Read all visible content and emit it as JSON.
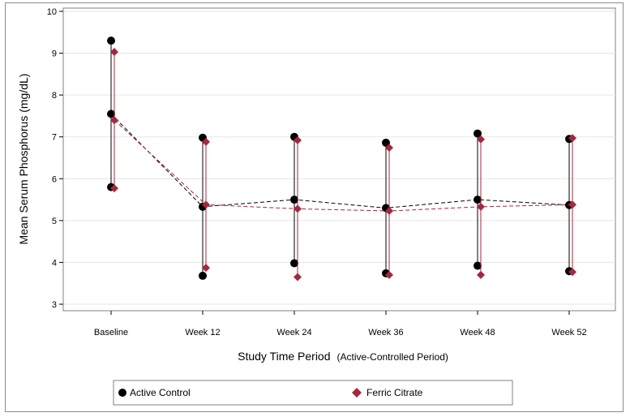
{
  "chart_data": {
    "type": "scatter",
    "categories": [
      "Baseline",
      "Week 12",
      "Week  24",
      "Week 36",
      "Week 48",
      "Week 52"
    ],
    "xlabel": "Study Time Period",
    "xlabel_suffix": "(Active-Controlled Period)",
    "ylabel": "Mean Serum Phosphorus (mg/dL)",
    "ylim": [
      3,
      10
    ],
    "yticks": [
      "3",
      "4",
      "5",
      "6",
      "7",
      "8",
      "9",
      "10"
    ],
    "grid": true,
    "legend_position": "bottom",
    "series": [
      {
        "name": "Active Control",
        "marker": "circle",
        "color": "#000000",
        "mean": [
          7.55,
          5.33,
          5.5,
          5.3,
          5.5,
          5.37
        ],
        "upper": [
          9.3,
          6.98,
          7.0,
          6.86,
          7.08,
          6.95
        ],
        "lower": [
          5.8,
          3.68,
          3.98,
          3.74,
          3.92,
          3.79
        ]
      },
      {
        "name": "Ferric Citrate",
        "marker": "diamond",
        "color": "#a3293e",
        "mean": [
          7.4,
          5.38,
          5.28,
          5.23,
          5.33,
          5.38
        ],
        "upper": [
          9.03,
          6.88,
          6.92,
          6.74,
          6.94,
          6.97
        ],
        "lower": [
          5.77,
          3.87,
          3.65,
          3.7,
          3.7,
          3.77
        ]
      }
    ]
  }
}
